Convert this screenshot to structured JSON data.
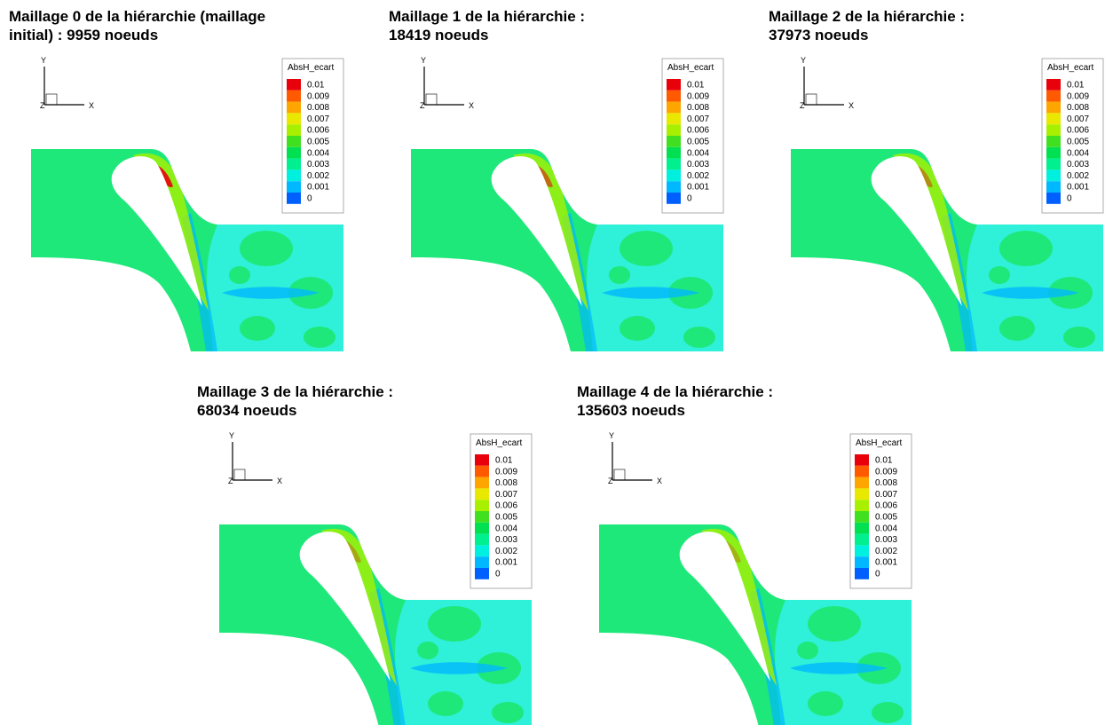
{
  "panels": [
    {
      "title": [
        "Maillage 0 de la hiérarchie (maillage",
        "initial) : 9959 noeuds"
      ],
      "axes": {
        "x": "X",
        "y": "Y",
        "z": "Z"
      },
      "legend": {
        "title": "AbsH_ecart",
        "levels": [
          "0.01",
          "0.009",
          "0.008",
          "0.007",
          "0.006",
          "0.005",
          "0.004",
          "0.003",
          "0.002",
          "0.001",
          "0"
        ]
      }
    },
    {
      "title": [
        "Maillage 1 de la hiérarchie :",
        "18419 noeuds"
      ],
      "axes": {
        "x": "X",
        "y": "Y",
        "z": "Z"
      },
      "legend": {
        "title": "AbsH_ecart",
        "levels": [
          "0.01",
          "0.009",
          "0.008",
          "0.007",
          "0.006",
          "0.005",
          "0.004",
          "0.003",
          "0.002",
          "0.001",
          "0"
        ]
      }
    },
    {
      "title": [
        "Maillage 2 de la hiérarchie :",
        "37973 noeuds"
      ],
      "axes": {
        "x": "X",
        "y": "Y",
        "z": "Z"
      },
      "legend": {
        "title": "AbsH_ecart",
        "levels": [
          "0.01",
          "0.009",
          "0.008",
          "0.007",
          "0.006",
          "0.005",
          "0.004",
          "0.003",
          "0.002",
          "0.001",
          "0"
        ]
      }
    },
    {
      "title": [
        "Maillage 3 de la hiérarchie :",
        "68034 noeuds"
      ],
      "axes": {
        "x": "X",
        "y": "Y",
        "z": "Z"
      },
      "legend": {
        "title": "AbsH_ecart",
        "levels": [
          "0.01",
          "0.009",
          "0.008",
          "0.007",
          "0.006",
          "0.005",
          "0.004",
          "0.003",
          "0.002",
          "0.001",
          "0"
        ]
      }
    },
    {
      "title": [
        "Maillage 4 de la hiérarchie :",
        "135603 noeuds"
      ],
      "axes": {
        "x": "X",
        "y": "Y",
        "z": "Z"
      },
      "legend": {
        "title": "AbsH_ecart",
        "levels": [
          "0.01",
          "0.009",
          "0.008",
          "0.007",
          "0.006",
          "0.005",
          "0.004",
          "0.003",
          "0.002",
          "0.001",
          "0"
        ]
      }
    }
  ]
}
